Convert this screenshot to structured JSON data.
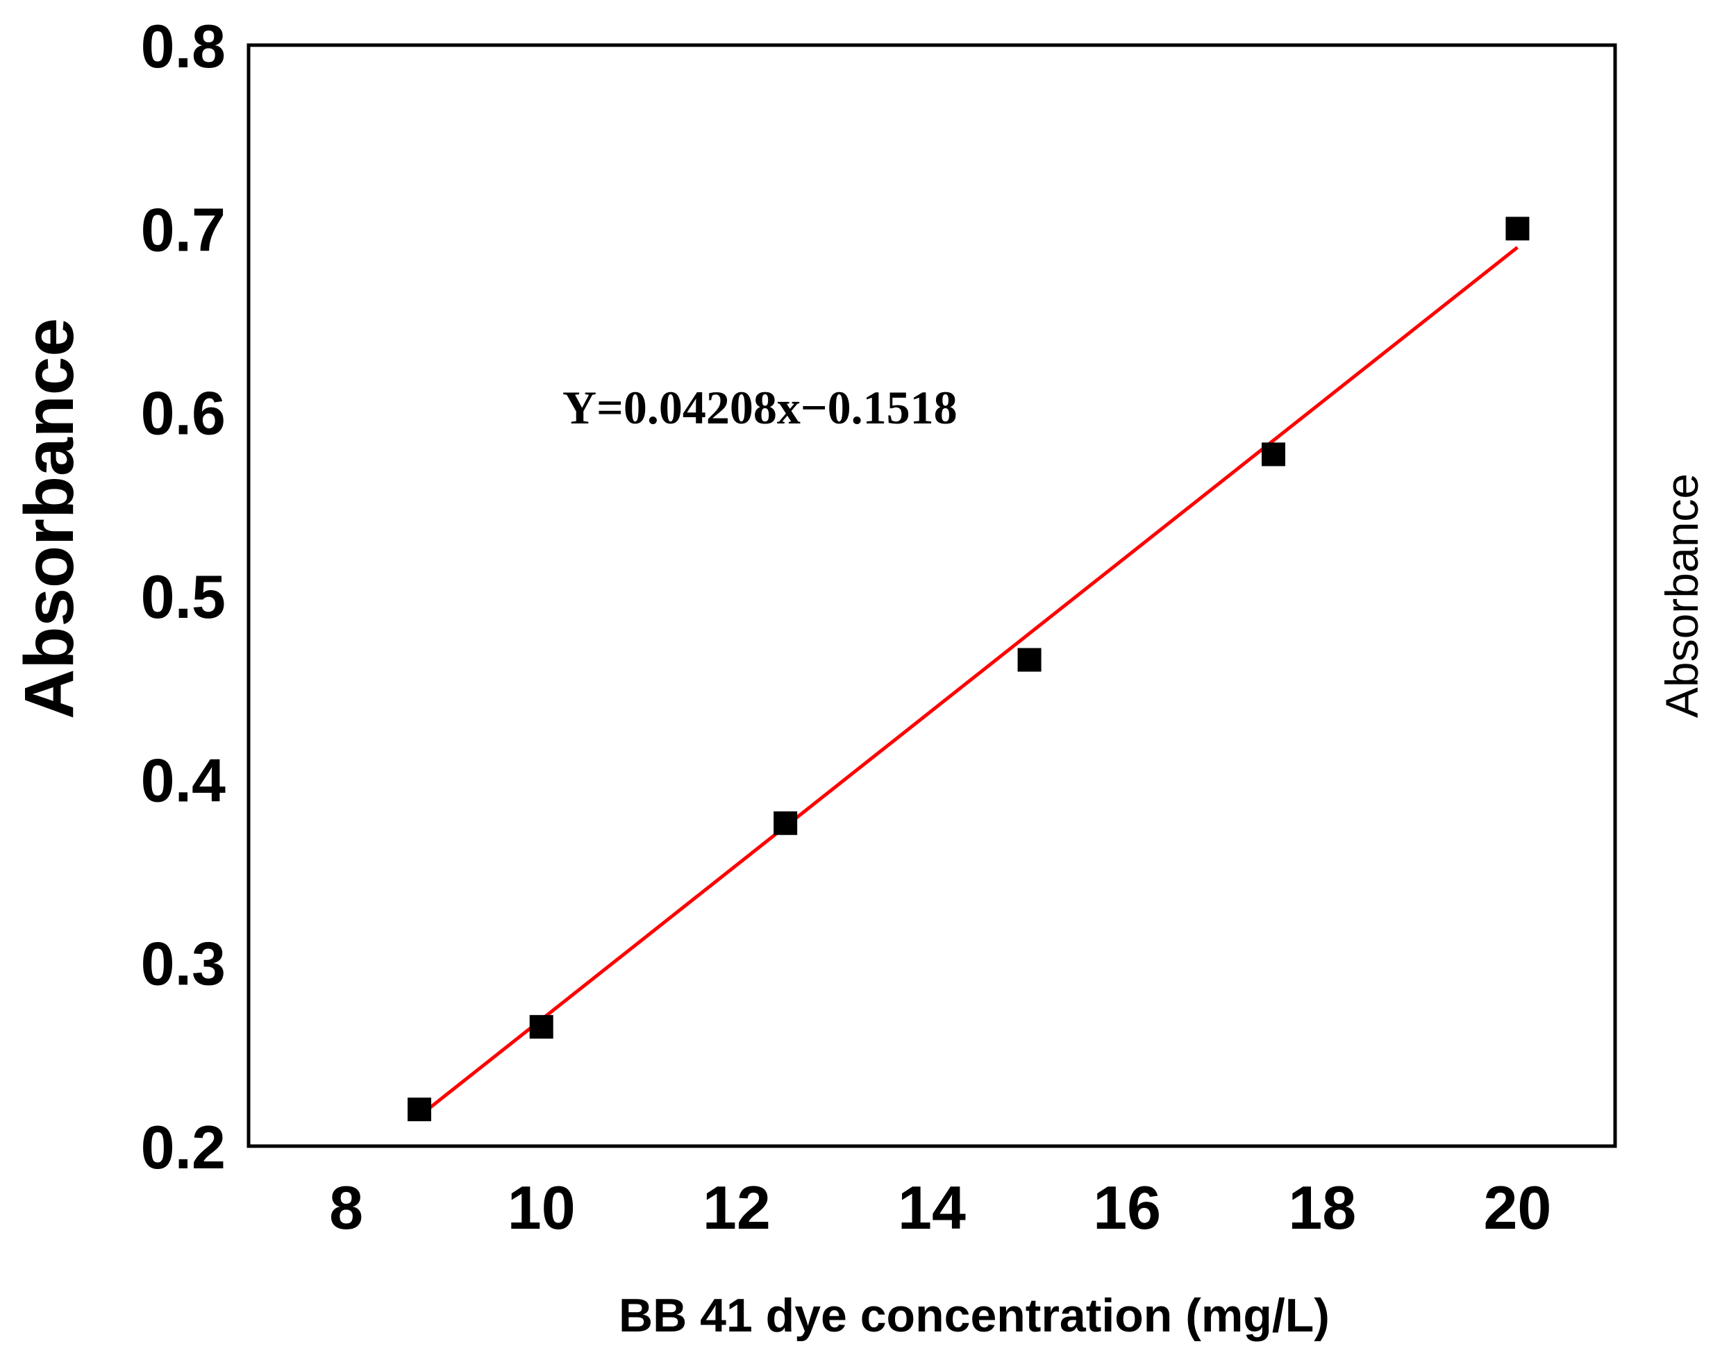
{
  "chart_data": {
    "type": "scatter",
    "xlabel": "BB 41 dye concentration (mg/L)",
    "ylabel": "Absorbance",
    "ylabel_right": "Absorbance",
    "xlim": [
      7,
      21
    ],
    "ylim": [
      0.2,
      0.8
    ],
    "xticks": [
      "8",
      "10",
      "12",
      "14",
      "16",
      "18",
      "20"
    ],
    "yticks": [
      "0.2",
      "0.3",
      "0.4",
      "0.5",
      "0.6",
      "0.7",
      "0.8"
    ],
    "grid": false,
    "annotation": "Y=0.04208x−0.1518",
    "series": [
      {
        "marker": "square",
        "color": "#000000",
        "points": [
          {
            "x": 8.75,
            "y": 0.22
          },
          {
            "x": 10,
            "y": 0.265
          },
          {
            "x": 12.5,
            "y": 0.376
          },
          {
            "x": 15,
            "y": 0.465
          },
          {
            "x": 17.5,
            "y": 0.577
          },
          {
            "x": 20,
            "y": 0.7
          }
        ]
      }
    ],
    "fit_line": {
      "color": "#ff0000",
      "slope": 0.04208,
      "intercept": -0.1518,
      "x_range": [
        8.75,
        20
      ]
    }
  }
}
